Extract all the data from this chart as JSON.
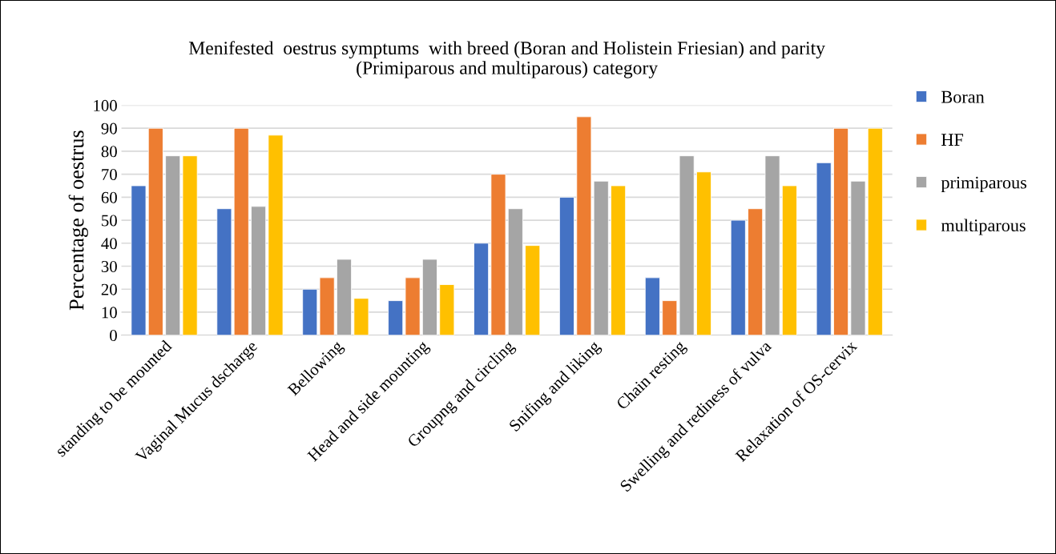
{
  "chart_data": {
    "type": "bar",
    "title": "Menifested  oestrus symptums  with breed (Boran and Holistein Friesian) and parity\n(Primiparous and multiparous) category",
    "ylabel": "Percentage of oestrus",
    "categories": [
      "standing to be mounted",
      "Vaginal Mucus dscharge",
      "Bellowing",
      "Head and side mounting",
      "Groupng and circling",
      "Snifing and liking",
      "Chain resting",
      "Swelling and rediness of vulva",
      "Relaxation of OS-cervix"
    ],
    "series": [
      {
        "name": "Boran",
        "color": "#4472c4",
        "values": [
          65,
          55,
          20,
          15,
          40,
          60,
          25,
          50,
          75
        ]
      },
      {
        "name": "HF",
        "color": "#ed7d31",
        "values": [
          90,
          90,
          25,
          25,
          70,
          95,
          15,
          55,
          90
        ]
      },
      {
        "name": "primiparous",
        "color": "#a5a5a5",
        "values": [
          78,
          56,
          33,
          33,
          55,
          67,
          78,
          78,
          67
        ]
      },
      {
        "name": "multiparous",
        "color": "#ffc000",
        "values": [
          78,
          87,
          16,
          22,
          39,
          65,
          71,
          65,
          90
        ]
      }
    ],
    "ylim": [
      0,
      100
    ],
    "yticks": [
      0,
      10,
      20,
      30,
      40,
      50,
      60,
      70,
      80,
      90,
      100
    ],
    "grid": "y",
    "legend": "right"
  }
}
